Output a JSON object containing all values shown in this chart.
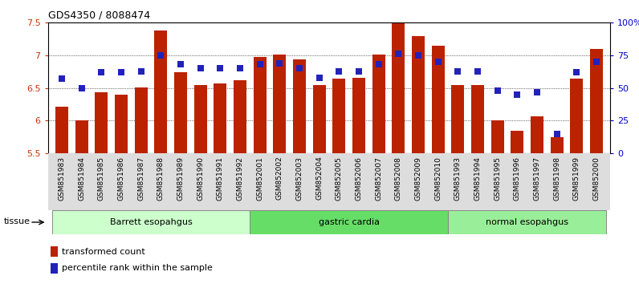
{
  "title": "GDS4350 / 8088474",
  "samples": [
    "GSM851983",
    "GSM851984",
    "GSM851985",
    "GSM851986",
    "GSM851987",
    "GSM851988",
    "GSM851989",
    "GSM851990",
    "GSM851991",
    "GSM851992",
    "GSM852001",
    "GSM852002",
    "GSM852003",
    "GSM852004",
    "GSM852005",
    "GSM852006",
    "GSM852007",
    "GSM852008",
    "GSM852009",
    "GSM852010",
    "GSM851993",
    "GSM851994",
    "GSM851995",
    "GSM851996",
    "GSM851997",
    "GSM851998",
    "GSM851999",
    "GSM852000"
  ],
  "bar_values": [
    6.22,
    6.01,
    6.44,
    6.4,
    6.51,
    7.38,
    6.74,
    6.55,
    6.57,
    6.62,
    6.97,
    7.01,
    6.94,
    6.55,
    6.65,
    6.66,
    7.01,
    7.49,
    7.29,
    7.15,
    6.55,
    6.54,
    6.01,
    5.85,
    6.07,
    5.75,
    6.64,
    7.1
  ],
  "percentile_values": [
    57,
    50,
    62,
    62,
    63,
    75,
    68,
    65,
    65,
    65,
    68,
    69,
    65,
    58,
    63,
    63,
    68,
    76,
    75,
    70,
    63,
    63,
    48,
    45,
    47,
    15,
    62,
    70
  ],
  "groups": [
    {
      "label": "Barrett esopahgus",
      "start": 0,
      "end": 10,
      "color": "#ccffcc"
    },
    {
      "label": "gastric cardia",
      "start": 10,
      "end": 20,
      "color": "#66dd66"
    },
    {
      "label": "normal esopahgus",
      "start": 20,
      "end": 28,
      "color": "#99ee99"
    }
  ],
  "ylim_left": [
    5.5,
    7.5
  ],
  "ylim_right": [
    0,
    100
  ],
  "bar_color": "#bb2200",
  "dot_color": "#2222bb",
  "grid_lines": [
    6.0,
    6.5,
    7.0
  ],
  "right_ticks": [
    0,
    25,
    50,
    75,
    100
  ],
  "right_tick_labels": [
    "0",
    "25",
    "50",
    "75",
    "100%"
  ],
  "left_tick_labels": [
    "5.5",
    "6",
    "6.5",
    "7",
    "7.5"
  ],
  "left_ticks": [
    5.5,
    6.0,
    6.5,
    7.0,
    7.5
  ],
  "legend_bar_label": "transformed count",
  "legend_dot_label": "percentile rank within the sample",
  "tissue_label": "tissue",
  "bar_color_label": "#cc3300",
  "dot_size": 40,
  "bar_width": 0.65
}
